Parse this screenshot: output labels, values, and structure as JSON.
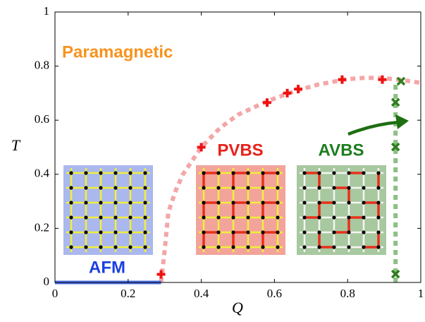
{
  "chart_data": {
    "type": "scatter",
    "xlabel": "Q",
    "ylabel": "T",
    "xlim": [
      0,
      1
    ],
    "ylim": [
      0,
      1
    ],
    "xticks": [
      0,
      0.2,
      0.4,
      0.6,
      0.8,
      1
    ],
    "yticks": [
      0,
      0.2,
      0.4,
      0.6,
      0.8,
      1
    ],
    "series": [
      {
        "color": "#ee1111",
        "marker": "plus",
        "x": [
          0.29,
          0.4,
          0.58,
          0.635,
          0.665,
          0.785,
          0.895
        ],
        "values": [
          0.03,
          0.5,
          0.665,
          0.7,
          0.715,
          0.75,
          0.75
        ]
      },
      {
        "color": "#2e7d1e",
        "marker": "cross",
        "x": [
          0.946,
          0.931,
          0.931,
          0.931
        ],
        "values": [
          0.744,
          0.666,
          0.501,
          0.031
        ]
      }
    ],
    "curves": [
      {
        "color": "#f4a6a6",
        "dashed": true,
        "width": 6,
        "x": [
          0.29,
          0.3,
          0.31,
          0.33,
          0.35,
          0.37,
          0.4,
          0.45,
          0.5,
          0.58,
          0.65,
          0.72,
          0.8,
          0.85,
          0.9,
          0.95,
          1
        ],
        "values": [
          0,
          0.12,
          0.26,
          0.34,
          0.4,
          0.44,
          0.5,
          0.57,
          0.62,
          0.67,
          0.705,
          0.732,
          0.752,
          0.757,
          0.755,
          0.748,
          0.738
        ]
      },
      {
        "color": "#8cc084",
        "dashed": true,
        "width": 6,
        "x": [
          0.931,
          0.931
        ],
        "values": [
          0,
          0.745
        ]
      },
      {
        "color": "#4a6fe3",
        "dashed": false,
        "width": 5,
        "x": [
          0,
          0.29
        ],
        "values": [
          0,
          0
        ]
      }
    ],
    "annotations": [
      {
        "text": "Paramagnetic",
        "color": "#f7931e"
      },
      {
        "text": "PVBS",
        "color": "#e8221b"
      },
      {
        "text": "AVBS",
        "color": "#1e7d1e"
      },
      {
        "text": "AFM",
        "color": "#1b3fe0"
      }
    ]
  }
}
